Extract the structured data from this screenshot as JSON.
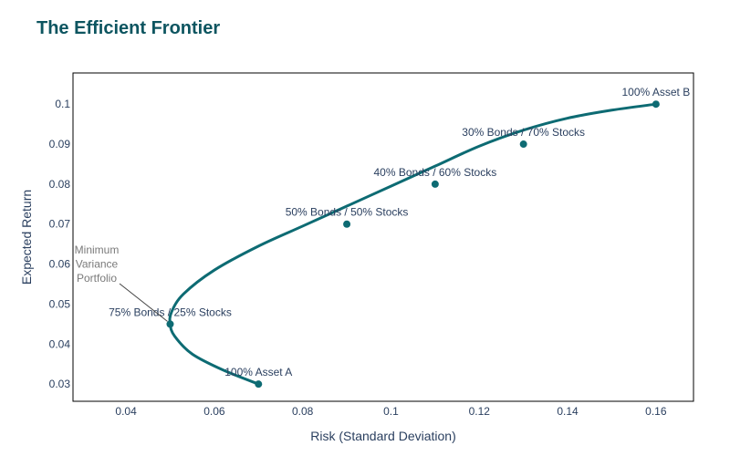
{
  "title": "The Efficient Frontier",
  "chart_data": {
    "type": "line",
    "title": "The Efficient Frontier",
    "xlabel": "Risk (Standard Deviation)",
    "ylabel": "Expected Return",
    "xlim": [
      0.028,
      0.1685
    ],
    "ylim": [
      0.0257,
      0.1078
    ],
    "x_ticks": [
      "0.04",
      "0.06",
      "0.08",
      "0.1",
      "0.12",
      "0.14",
      "0.16"
    ],
    "y_ticks": [
      "0.03",
      "0.04",
      "0.05",
      "0.06",
      "0.07",
      "0.08",
      "0.09",
      "0.1"
    ],
    "grid": false,
    "color": "#0d6b73",
    "frontier_curve": {
      "x": [
        0.07,
        0.062,
        0.055,
        0.051,
        0.05,
        0.0503,
        0.053,
        0.06,
        0.07,
        0.08,
        0.09,
        0.1,
        0.11,
        0.12,
        0.13,
        0.14,
        0.15,
        0.16
      ],
      "y": [
        0.03,
        0.0335,
        0.0375,
        0.042,
        0.045,
        0.048,
        0.0525,
        0.0585,
        0.0645,
        0.0695,
        0.0745,
        0.0795,
        0.0845,
        0.0895,
        0.0935,
        0.0965,
        0.0985,
        0.1
      ]
    },
    "points": [
      {
        "label": "100% Asset A",
        "x": 0.07,
        "y": 0.03
      },
      {
        "label": "75% Bonds / 25% Stocks",
        "x": 0.05,
        "y": 0.045
      },
      {
        "label": "50% Bonds / 50% Stocks",
        "x": 0.09,
        "y": 0.07
      },
      {
        "label": "40% Bonds / 60% Stocks",
        "x": 0.11,
        "y": 0.08
      },
      {
        "label": "30% Bonds / 70% Stocks",
        "x": 0.13,
        "y": 0.09
      },
      {
        "label": "100% Asset B",
        "x": 0.16,
        "y": 0.1
      }
    ],
    "annotation": {
      "lines": [
        "Minimum",
        "Variance",
        "Portfolio"
      ],
      "x": 0.05,
      "y": 0.045
    }
  }
}
